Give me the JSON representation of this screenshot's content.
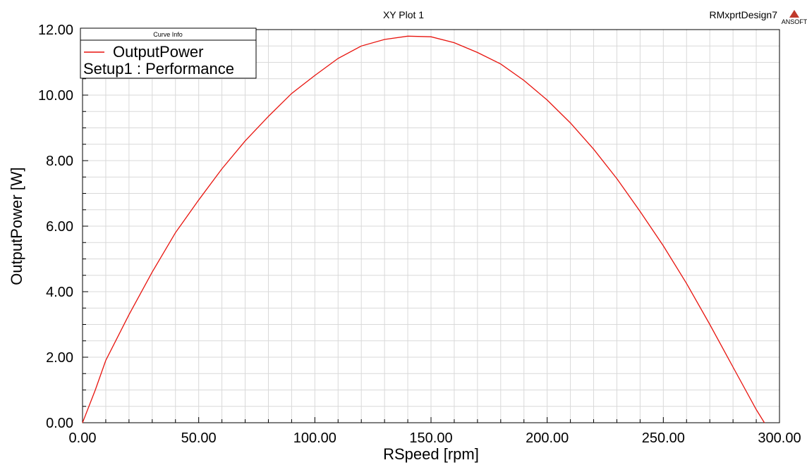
{
  "header": {
    "design_name": "RMxprtDesign7",
    "logo_text": "ANSOFT"
  },
  "legend": {
    "title": "Curve Info",
    "series_label": "OutputPower",
    "setup_label": "Setup1 : Performance"
  },
  "colors": {
    "curve": "#e8140e",
    "grid": "#d9d9d9",
    "logo": "#c0392b"
  },
  "chart_data": {
    "type": "line",
    "title": "XY Plot 1",
    "xlabel": "RSpeed [rpm]",
    "ylabel": "OutputPower [W]",
    "xlim": [
      0,
      300
    ],
    "ylim": [
      0,
      12
    ],
    "x_ticks": [
      "0.00",
      "50.00",
      "100.00",
      "150.00",
      "200.00",
      "250.00",
      "300.00"
    ],
    "y_ticks": [
      "0.00",
      "2.00",
      "4.00",
      "6.00",
      "8.00",
      "10.00",
      "12.00"
    ],
    "grid": true,
    "legend_position": "top-left",
    "series": [
      {
        "name": "OutputPower",
        "x": [
          0,
          5.5,
          10,
          20,
          30,
          40,
          50,
          60,
          70,
          80,
          90,
          100,
          110,
          120,
          130,
          140,
          150,
          160,
          170,
          180,
          190,
          200,
          210,
          220,
          230,
          240,
          250,
          260,
          270,
          280,
          290,
          293.5
        ],
        "y": [
          0,
          1.0,
          1.9,
          3.3,
          4.6,
          5.8,
          6.8,
          7.75,
          8.6,
          9.35,
          10.05,
          10.6,
          11.12,
          11.5,
          11.7,
          11.8,
          11.78,
          11.6,
          11.3,
          10.95,
          10.45,
          9.85,
          9.15,
          8.35,
          7.45,
          6.45,
          5.4,
          4.25,
          3.0,
          1.7,
          0.4,
          0
        ]
      }
    ]
  }
}
